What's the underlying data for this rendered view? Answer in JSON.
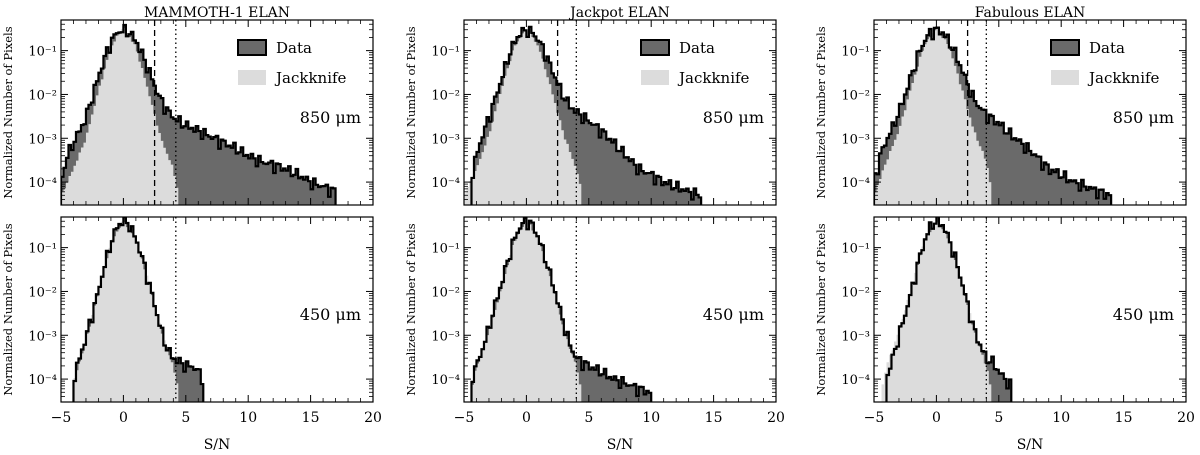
{
  "chart_data": {
    "type": "area",
    "grid": false,
    "xlim": [
      -5,
      20
    ],
    "ylim_log": [
      3e-05,
      0.5
    ],
    "xticks": [
      -5,
      0,
      5,
      10,
      15,
      20
    ],
    "yticks": [
      {
        "v": 0.1,
        "label": "10⁻¹"
      },
      {
        "v": 0.01,
        "label": "10⁻²"
      },
      {
        "v": 0.001,
        "label": "10⁻³"
      },
      {
        "v": 0.0001,
        "label": "10⁻⁴"
      }
    ],
    "xlabel": "S/N",
    "ylabel": "Normalized Number of Pixels",
    "legend": {
      "placement": "top-right",
      "entries": [
        "Data",
        "Jackknife"
      ]
    },
    "colors": {
      "data_fill": "#6a6a6a",
      "jack_fill": "#dcdcdc",
      "outline": "#000000"
    },
    "columns": [
      {
        "title": "MAMMOTH-1 ELAN",
        "panels": [
          {
            "band": "850 μm",
            "legend": true,
            "vlines": [
              {
                "x": 2.5,
                "style": "dashed"
              },
              {
                "x": 4.2,
                "style": "dotted"
              }
            ],
            "data_series": [
              [
                -5,
                0.0001
              ],
              [
                -4.5,
                0.0004
              ],
              [
                -4,
                0.0008
              ],
              [
                -3.5,
                0.0015
              ],
              [
                -3,
                0.003
              ],
              [
                -2.5,
                0.009
              ],
              [
                -2,
                0.025
              ],
              [
                -1.5,
                0.07
              ],
              [
                -1,
                0.16
              ],
              [
                -0.5,
                0.26
              ],
              [
                0,
                0.3
              ],
              [
                0.5,
                0.26
              ],
              [
                1,
                0.17
              ],
              [
                1.5,
                0.085
              ],
              [
                2,
                0.038
              ],
              [
                2.5,
                0.016
              ],
              [
                3,
                0.0075
              ],
              [
                3.5,
                0.0045
              ],
              [
                4,
                0.003
              ],
              [
                5,
                0.002
              ],
              [
                6,
                0.0015
              ],
              [
                7,
                0.0011
              ],
              [
                8,
                0.0008
              ],
              [
                9,
                0.0006
              ],
              [
                10,
                0.0004
              ],
              [
                11,
                0.0003
              ],
              [
                12,
                0.00025
              ],
              [
                13,
                0.0002
              ],
              [
                14,
                0.00015
              ],
              [
                15,
                0.0001
              ],
              [
                16,
                8e-05
              ],
              [
                17,
                6e-05
              ]
            ],
            "jack_series": [
              [
                -5,
                5e-05
              ],
              [
                -4,
                0.0002
              ],
              [
                -3,
                0.001
              ],
              [
                -2,
                0.012
              ],
              [
                -1,
                0.12
              ],
              [
                0,
                0.35
              ],
              [
                1,
                0.12
              ],
              [
                2,
                0.012
              ],
              [
                3,
                0.001
              ],
              [
                4,
                0.0002
              ],
              [
                4.5,
                4e-05
              ]
            ]
          },
          {
            "band": "450 μm",
            "legend": false,
            "vlines": [
              {
                "x": 4.2,
                "style": "dotted"
              }
            ],
            "data_series": [
              [
                -4,
                0.0001
              ],
              [
                -3.5,
                0.0003
              ],
              [
                -3,
                0.0009
              ],
              [
                -2.5,
                0.003
              ],
              [
                -2,
                0.01
              ],
              [
                -1.5,
                0.04
              ],
              [
                -1,
                0.13
              ],
              [
                -0.5,
                0.3
              ],
              [
                0,
                0.42
              ],
              [
                0.5,
                0.33
              ],
              [
                1,
                0.16
              ],
              [
                1.5,
                0.06
              ],
              [
                2,
                0.018
              ],
              [
                2.5,
                0.005
              ],
              [
                3,
                0.0014
              ],
              [
                3.5,
                0.0005
              ],
              [
                4,
                0.0003
              ],
              [
                4.5,
                0.00025
              ],
              [
                5,
                0.0002
              ],
              [
                5.5,
                0.0002
              ],
              [
                6,
                0.00015
              ],
              [
                6.5,
                0.0001
              ]
            ],
            "jack_series": [
              [
                -4,
                8e-05
              ],
              [
                -3,
                0.0008
              ],
              [
                -2,
                0.01
              ],
              [
                -1,
                0.13
              ],
              [
                0,
                0.42
              ],
              [
                1,
                0.16
              ],
              [
                2,
                0.018
              ],
              [
                3,
                0.0014
              ],
              [
                4,
                0.0002
              ],
              [
                4.5,
                4e-05
              ]
            ]
          }
        ]
      },
      {
        "title": "Jackpot ELAN",
        "panels": [
          {
            "band": "850 μm",
            "legend": true,
            "vlines": [
              {
                "x": 2.5,
                "style": "dashed"
              },
              {
                "x": 4.0,
                "style": "dotted"
              }
            ],
            "data_series": [
              [
                -4.5,
                0.0001
              ],
              [
                -4,
                0.0004
              ],
              [
                -3.5,
                0.0012
              ],
              [
                -3,
                0.003
              ],
              [
                -2.5,
                0.008
              ],
              [
                -2,
                0.022
              ],
              [
                -1.5,
                0.065
              ],
              [
                -1,
                0.15
              ],
              [
                -0.5,
                0.25
              ],
              [
                0,
                0.3
              ],
              [
                0.5,
                0.26
              ],
              [
                1,
                0.17
              ],
              [
                1.5,
                0.09
              ],
              [
                2,
                0.04
              ],
              [
                2.5,
                0.018
              ],
              [
                3,
                0.009
              ],
              [
                3.5,
                0.0055
              ],
              [
                4,
                0.004
              ],
              [
                5,
                0.0025
              ],
              [
                6,
                0.0015
              ],
              [
                7,
                0.0008
              ],
              [
                8,
                0.0004
              ],
              [
                9,
                0.0002
              ],
              [
                10,
                0.00015
              ],
              [
                11,
                0.0001
              ],
              [
                12,
                8e-05
              ],
              [
                13,
                6e-05
              ],
              [
                14,
                5e-05
              ]
            ],
            "jack_series": [
              [
                -5,
                5e-05
              ],
              [
                -4,
                0.0002
              ],
              [
                -3,
                0.0012
              ],
              [
                -2,
                0.013
              ],
              [
                -1,
                0.12
              ],
              [
                0,
                0.33
              ],
              [
                1,
                0.12
              ],
              [
                2,
                0.013
              ],
              [
                3,
                0.0012
              ],
              [
                4,
                0.0002
              ],
              [
                4.5,
                5e-05
              ]
            ]
          },
          {
            "band": "450 μm",
            "legend": false,
            "vlines": [
              {
                "x": 4.0,
                "style": "dotted"
              }
            ],
            "data_series": [
              [
                -4.5,
                0.0001
              ],
              [
                -4,
                0.0002
              ],
              [
                -3.5,
                0.0005
              ],
              [
                -3,
                0.0015
              ],
              [
                -2.5,
                0.005
              ],
              [
                -2,
                0.015
              ],
              [
                -1.5,
                0.05
              ],
              [
                -1,
                0.15
              ],
              [
                -0.5,
                0.3
              ],
              [
                0,
                0.42
              ],
              [
                0.5,
                0.33
              ],
              [
                1,
                0.16
              ],
              [
                1.5,
                0.06
              ],
              [
                2,
                0.02
              ],
              [
                2.5,
                0.006
              ],
              [
                3,
                0.0018
              ],
              [
                3.5,
                0.0006
              ],
              [
                4,
                0.0003
              ],
              [
                5,
                0.0002
              ],
              [
                6,
                0.00015
              ],
              [
                7,
                0.0001
              ],
              [
                8,
                8e-05
              ],
              [
                9,
                6e-05
              ],
              [
                10,
                5e-05
              ]
            ],
            "jack_series": [
              [
                -4.5,
                4e-05
              ],
              [
                -4,
                0.0002
              ],
              [
                -3,
                0.0012
              ],
              [
                -2,
                0.012
              ],
              [
                -1,
                0.14
              ],
              [
                0,
                0.42
              ],
              [
                1,
                0.16
              ],
              [
                2,
                0.018
              ],
              [
                3,
                0.0014
              ],
              [
                4,
                0.0002
              ],
              [
                4.5,
                4e-05
              ]
            ]
          }
        ]
      },
      {
        "title": "Fabulous ELAN",
        "panels": [
          {
            "band": "850 μm",
            "legend": true,
            "vlines": [
              {
                "x": 2.5,
                "style": "dashed"
              },
              {
                "x": 4.0,
                "style": "dotted"
              }
            ],
            "data_series": [
              [
                -5,
                0.0001
              ],
              [
                -4.5,
                0.0004
              ],
              [
                -4,
                0.0009
              ],
              [
                -3.5,
                0.0018
              ],
              [
                -3,
                0.004
              ],
              [
                -2.5,
                0.01
              ],
              [
                -2,
                0.028
              ],
              [
                -1.5,
                0.075
              ],
              [
                -1,
                0.16
              ],
              [
                -0.5,
                0.26
              ],
              [
                0,
                0.3
              ],
              [
                0.5,
                0.26
              ],
              [
                1,
                0.17
              ],
              [
                1.5,
                0.09
              ],
              [
                2,
                0.04
              ],
              [
                2.5,
                0.017
              ],
              [
                3,
                0.008
              ],
              [
                3.5,
                0.005
              ],
              [
                4,
                0.0035
              ],
              [
                5,
                0.0022
              ],
              [
                6,
                0.0012
              ],
              [
                7,
                0.0007
              ],
              [
                8,
                0.0004
              ],
              [
                9,
                0.0002
              ],
              [
                10,
                0.00015
              ],
              [
                11,
                0.0001
              ],
              [
                12,
                8e-05
              ],
              [
                13,
                6e-05
              ],
              [
                14,
                5e-05
              ]
            ],
            "jack_series": [
              [
                -5,
                5e-05
              ],
              [
                -4,
                0.0003
              ],
              [
                -3,
                0.0015
              ],
              [
                -2,
                0.015
              ],
              [
                -1,
                0.13
              ],
              [
                0,
                0.33
              ],
              [
                1,
                0.13
              ],
              [
                2,
                0.015
              ],
              [
                3,
                0.0015
              ],
              [
                4,
                0.0003
              ],
              [
                4.5,
                5e-05
              ]
            ]
          },
          {
            "band": "450 μm",
            "legend": false,
            "vlines": [
              {
                "x": 4.0,
                "style": "dotted"
              }
            ],
            "data_series": [
              [
                -4,
                0.0001
              ],
              [
                -3.5,
                0.0003
              ],
              [
                -3,
                0.001
              ],
              [
                -2.5,
                0.003
              ],
              [
                -2,
                0.01
              ],
              [
                -1.5,
                0.04
              ],
              [
                -1,
                0.13
              ],
              [
                -0.5,
                0.3
              ],
              [
                0,
                0.42
              ],
              [
                0.5,
                0.33
              ],
              [
                1,
                0.16
              ],
              [
                1.5,
                0.06
              ],
              [
                2,
                0.018
              ],
              [
                2.5,
                0.005
              ],
              [
                3,
                0.0014
              ],
              [
                3.5,
                0.0006
              ],
              [
                4,
                0.0003
              ],
              [
                4.5,
                0.00025
              ],
              [
                5,
                0.00015
              ],
              [
                5.5,
                0.0001
              ],
              [
                6,
                7e-05
              ]
            ],
            "jack_series": [
              [
                -4.5,
                4e-05
              ],
              [
                -4,
                0.0002
              ],
              [
                -3,
                0.0012
              ],
              [
                -2,
                0.012
              ],
              [
                -1,
                0.14
              ],
              [
                0,
                0.42
              ],
              [
                1,
                0.16
              ],
              [
                2,
                0.018
              ],
              [
                3,
                0.0014
              ],
              [
                4,
                0.0002
              ],
              [
                4.5,
                4e-05
              ]
            ]
          }
        ]
      }
    ]
  }
}
